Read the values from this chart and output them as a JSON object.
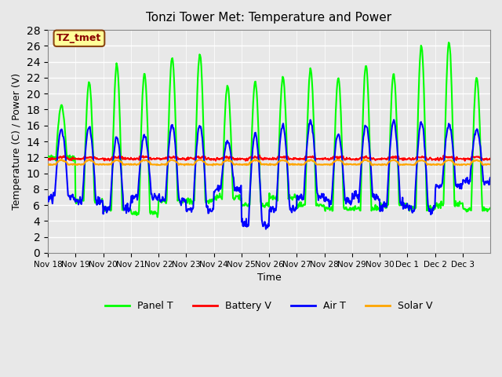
{
  "title": "Tonzi Tower Met: Temperature and Power",
  "xlabel": "Time",
  "ylabel": "Temperature (C) / Power (V)",
  "ylim": [
    0,
    28
  ],
  "yticks": [
    0,
    2,
    4,
    6,
    8,
    10,
    12,
    14,
    16,
    18,
    20,
    22,
    24,
    26,
    28
  ],
  "xtick_labels": [
    "Nov 18",
    "Nov 19",
    "Nov 20",
    "Nov 21",
    "Nov 22",
    "Nov 23",
    "Nov 24",
    "Nov 25",
    "Nov 26",
    "Nov 27",
    "Nov 28",
    "Nov 29",
    "Nov 30",
    "Dec 1",
    "Dec 2",
    "Dec 3"
  ],
  "series": {
    "Panel T": {
      "color": "#00FF00",
      "linewidth": 1.5
    },
    "Battery V": {
      "color": "#FF0000",
      "linewidth": 1.5
    },
    "Air T": {
      "color": "#0000FF",
      "linewidth": 1.5
    },
    "Solar V": {
      "color": "#FFA500",
      "linewidth": 1.5
    }
  },
  "legend_label": "TZ_tmet",
  "legend_bg": "#FFFF99",
  "legend_border": "#8B4513",
  "background_color": "#E8E8E8",
  "grid_color": "#FFFFFF",
  "n_days": 16,
  "points_per_day": 48,
  "panel_peaks": [
    18.5,
    21.5,
    23.5,
    22.5,
    24.5,
    25.0,
    21.0,
    21.5,
    22.0,
    23.0,
    22.0,
    23.5,
    22.5,
    26.0,
    26.5,
    22.0
  ],
  "panel_mins": [
    12.0,
    6.5,
    5.5,
    5.0,
    6.5,
    6.5,
    7.0,
    6.0,
    7.0,
    6.0,
    5.5,
    5.5,
    6.0,
    5.5,
    6.0,
    5.5
  ],
  "air_peaks": [
    15.5,
    15.8,
    14.5,
    14.8,
    16.0,
    16.0,
    14.0,
    15.0,
    16.0,
    16.5,
    15.0,
    16.0,
    16.5,
    16.5,
    16.0,
    15.5
  ],
  "air_mins": [
    7.0,
    6.5,
    5.5,
    7.0,
    6.5,
    5.5,
    8.0,
    3.5,
    5.5,
    7.0,
    6.5,
    7.0,
    6.0,
    5.5,
    8.5,
    9.0
  ]
}
